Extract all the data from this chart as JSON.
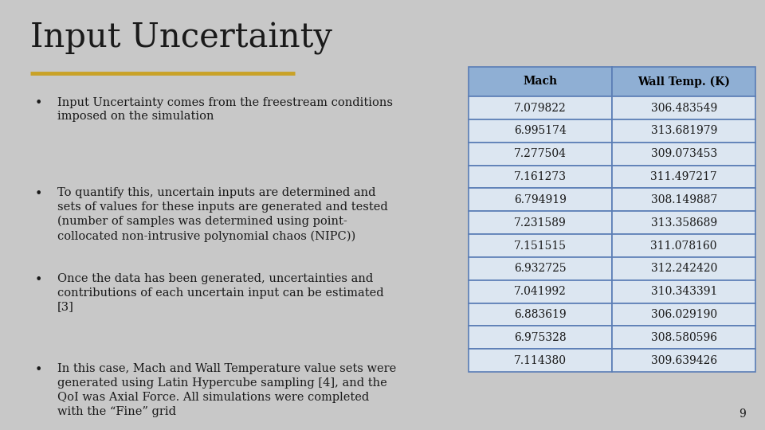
{
  "title": "Input Uncertainty",
  "title_color": "#1a1a1a",
  "title_underline_color": "#c9a227",
  "background_color": "#c8c8c8",
  "bullet_points": [
    "Input Uncertainty comes from the freestream conditions\nimposed on the simulation",
    "To quantify this, uncertain inputs are determined and\nsets of values for these inputs are generated and tested\n(number of samples was determined using point-\ncollocated non-intrusive polynomial chaos (NIPC))",
    "Once the data has been generated, uncertainties and\ncontributions of each uncertain input can be estimated\n[3]",
    "In this case, Mach and Wall Temperature value sets were\ngenerated using Latin Hypercube sampling [4], and the\nQoI was Axial Force. All simulations were completed\nwith the “Fine” grid"
  ],
  "table_header": [
    "Mach",
    "Wall Temp. (K)"
  ],
  "table_data": [
    [
      "7.079822",
      "306.483549"
    ],
    [
      "6.995174",
      "313.681979"
    ],
    [
      "7.277504",
      "309.073453"
    ],
    [
      "7.161273",
      "311.497217"
    ],
    [
      "6.794919",
      "308.149887"
    ],
    [
      "7.231589",
      "313.358689"
    ],
    [
      "7.151515",
      "311.078160"
    ],
    [
      "6.932725",
      "312.242420"
    ],
    [
      "7.041992",
      "310.343391"
    ],
    [
      "6.883619",
      "306.029190"
    ],
    [
      "6.975328",
      "308.580596"
    ],
    [
      "7.114380",
      "309.639426"
    ]
  ],
  "table_header_bg": "#8fafd4",
  "table_row_bg": "#dce6f1",
  "table_border_color": "#5a7db5",
  "table_text_color": "#1a1a1a",
  "table_header_text_color": "#000000",
  "page_number": "9",
  "text_color": "#1a1a1a",
  "font_size_title": 30,
  "font_size_body": 10.5,
  "font_size_table": 10
}
